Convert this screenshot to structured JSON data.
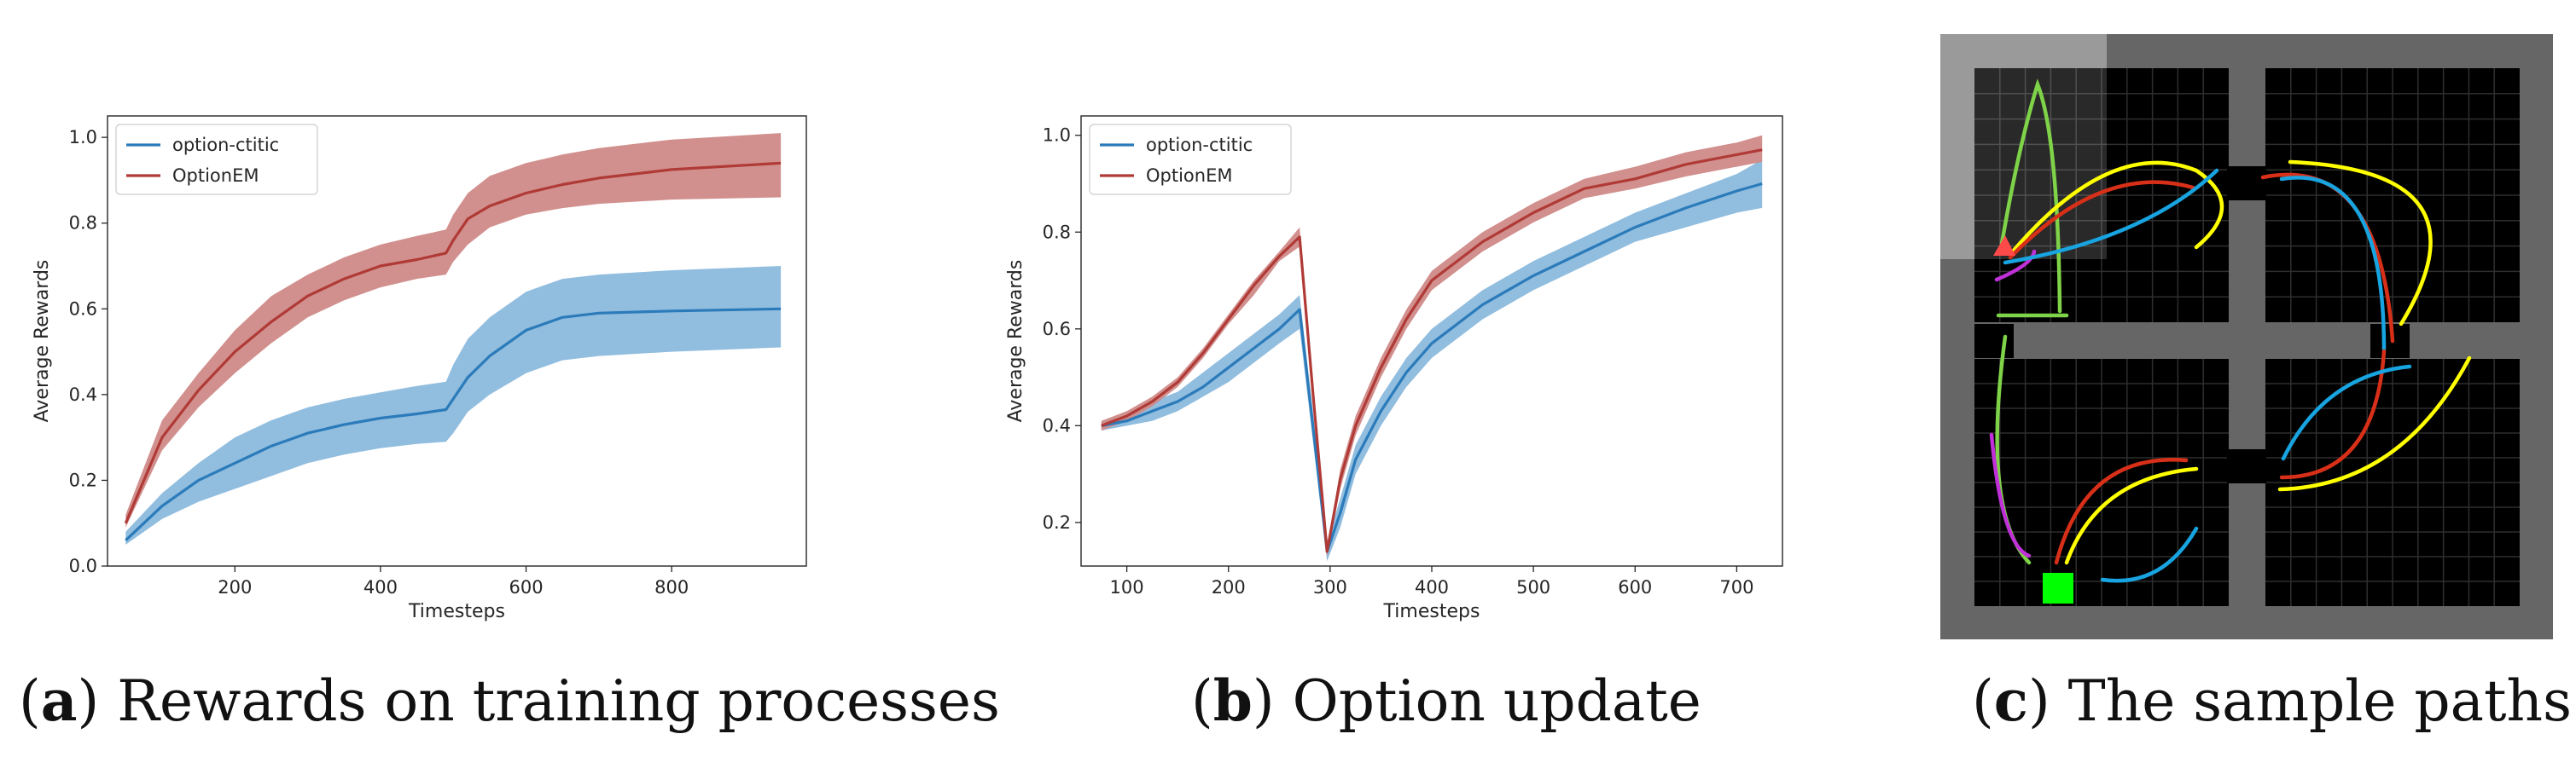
{
  "colors": {
    "blue": "#2b7bba",
    "blue_band": "#8bb9dd",
    "red": "#b03a36",
    "red_band": "#cf8a88",
    "grid_bg": "#000000",
    "grid_line": "#2e2e2e",
    "wall": "#666666",
    "highlight": "#9a9a9a",
    "path_green": "#7ed348",
    "path_yellow": "#ffff00",
    "path_red": "#d83018",
    "path_blue": "#18a4e0",
    "path_purple": "#c030d8",
    "goal": "#00ff00",
    "agent": "#ff4a4a"
  },
  "captions": {
    "a": {
      "label": "(a)",
      "letter": "a",
      "text": "Rewards on training processes"
    },
    "b": {
      "label": "(b)",
      "letter": "b",
      "text": "Option update"
    },
    "c": {
      "label": "(c)",
      "letter": "c",
      "text": "The sample paths"
    }
  },
  "gridworld": {
    "legend_icons": [
      "agent-triangle",
      "goal-square"
    ],
    "paths": [
      "green",
      "yellow",
      "red",
      "blue",
      "purple"
    ]
  },
  "chart_data": [
    {
      "id": "a",
      "type": "line",
      "title": "",
      "xlabel": "Timesteps",
      "ylabel": "Average Rewards",
      "xlim": [
        25,
        985
      ],
      "ylim": [
        0.0,
        1.05
      ],
      "xticks": [
        200,
        400,
        600,
        800
      ],
      "yticks": [
        0.0,
        0.2,
        0.4,
        0.6,
        0.8,
        1.0
      ],
      "ytick_labels": [
        "0.0",
        "0.2",
        "0.4",
        "0.6",
        "0.8",
        "1.0"
      ],
      "legend_position": "top-left",
      "series": [
        {
          "name": "option-ctitic",
          "color": "blue",
          "x": [
            50,
            100,
            150,
            200,
            250,
            300,
            350,
            400,
            450,
            490,
            500,
            520,
            550,
            600,
            650,
            700,
            800,
            950
          ],
          "mean": [
            0.06,
            0.14,
            0.2,
            0.24,
            0.28,
            0.31,
            0.33,
            0.345,
            0.355,
            0.365,
            0.39,
            0.44,
            0.49,
            0.55,
            0.58,
            0.59,
            0.595,
            0.6
          ],
          "lower": [
            0.05,
            0.11,
            0.15,
            0.18,
            0.21,
            0.24,
            0.26,
            0.275,
            0.285,
            0.29,
            0.31,
            0.36,
            0.4,
            0.45,
            0.48,
            0.49,
            0.5,
            0.51
          ],
          "upper": [
            0.08,
            0.17,
            0.24,
            0.3,
            0.34,
            0.37,
            0.39,
            0.405,
            0.42,
            0.43,
            0.47,
            0.53,
            0.58,
            0.64,
            0.67,
            0.68,
            0.69,
            0.7
          ]
        },
        {
          "name": "OptionEM",
          "color": "red",
          "x": [
            50,
            100,
            150,
            200,
            250,
            300,
            350,
            400,
            450,
            490,
            500,
            520,
            550,
            600,
            650,
            700,
            800,
            950
          ],
          "mean": [
            0.1,
            0.3,
            0.41,
            0.5,
            0.57,
            0.63,
            0.67,
            0.7,
            0.715,
            0.73,
            0.76,
            0.81,
            0.84,
            0.87,
            0.89,
            0.905,
            0.925,
            0.94
          ],
          "lower": [
            0.09,
            0.27,
            0.37,
            0.45,
            0.52,
            0.58,
            0.62,
            0.65,
            0.67,
            0.68,
            0.71,
            0.75,
            0.79,
            0.82,
            0.835,
            0.845,
            0.855,
            0.86
          ],
          "upper": [
            0.12,
            0.34,
            0.45,
            0.55,
            0.63,
            0.68,
            0.72,
            0.75,
            0.77,
            0.785,
            0.82,
            0.87,
            0.91,
            0.94,
            0.96,
            0.975,
            0.995,
            1.01
          ]
        }
      ]
    },
    {
      "id": "b",
      "type": "line",
      "title": "",
      "xlabel": "Timesteps",
      "ylabel": "Average Rewards",
      "xlim": [
        55,
        745
      ],
      "ylim": [
        0.11,
        1.04
      ],
      "xticks": [
        100,
        200,
        300,
        400,
        500,
        600,
        700
      ],
      "yticks": [
        0.2,
        0.4,
        0.6,
        0.8,
        1.0
      ],
      "ytick_labels": [
        "0.2",
        "0.4",
        "0.6",
        "0.8",
        "1.0"
      ],
      "legend_position": "top-left",
      "series": [
        {
          "name": "option-ctitic",
          "color": "blue",
          "x": [
            75,
            100,
            125,
            150,
            175,
            200,
            225,
            250,
            270,
            283,
            297,
            310,
            325,
            350,
            375,
            400,
            450,
            500,
            550,
            600,
            650,
            700,
            725
          ],
          "mean": [
            0.4,
            0.41,
            0.43,
            0.45,
            0.48,
            0.52,
            0.56,
            0.6,
            0.64,
            0.4,
            0.14,
            0.22,
            0.33,
            0.43,
            0.51,
            0.57,
            0.65,
            0.71,
            0.76,
            0.81,
            0.85,
            0.885,
            0.9
          ],
          "lower": [
            0.39,
            0.4,
            0.41,
            0.43,
            0.46,
            0.49,
            0.53,
            0.57,
            0.6,
            0.37,
            0.12,
            0.19,
            0.3,
            0.4,
            0.48,
            0.54,
            0.62,
            0.68,
            0.73,
            0.78,
            0.81,
            0.84,
            0.85
          ],
          "upper": [
            0.41,
            0.42,
            0.45,
            0.47,
            0.51,
            0.55,
            0.59,
            0.63,
            0.67,
            0.43,
            0.16,
            0.25,
            0.36,
            0.46,
            0.54,
            0.6,
            0.68,
            0.74,
            0.79,
            0.84,
            0.88,
            0.92,
            0.95
          ]
        },
        {
          "name": "OptionEM",
          "color": "red",
          "x": [
            75,
            100,
            125,
            150,
            175,
            200,
            225,
            250,
            270,
            283,
            297,
            310,
            325,
            350,
            375,
            400,
            450,
            500,
            550,
            600,
            650,
            700,
            725
          ],
          "mean": [
            0.4,
            0.42,
            0.45,
            0.49,
            0.55,
            0.62,
            0.69,
            0.75,
            0.79,
            0.47,
            0.14,
            0.29,
            0.4,
            0.52,
            0.62,
            0.7,
            0.78,
            0.84,
            0.89,
            0.91,
            0.94,
            0.96,
            0.97
          ],
          "lower": [
            0.39,
            0.41,
            0.44,
            0.48,
            0.54,
            0.61,
            0.67,
            0.74,
            0.77,
            0.45,
            0.13,
            0.27,
            0.38,
            0.5,
            0.6,
            0.68,
            0.76,
            0.82,
            0.87,
            0.89,
            0.915,
            0.935,
            0.945
          ],
          "upper": [
            0.41,
            0.43,
            0.46,
            0.5,
            0.56,
            0.63,
            0.7,
            0.76,
            0.81,
            0.49,
            0.15,
            0.31,
            0.42,
            0.54,
            0.64,
            0.72,
            0.8,
            0.86,
            0.91,
            0.935,
            0.965,
            0.985,
            1.0
          ]
        }
      ]
    }
  ]
}
